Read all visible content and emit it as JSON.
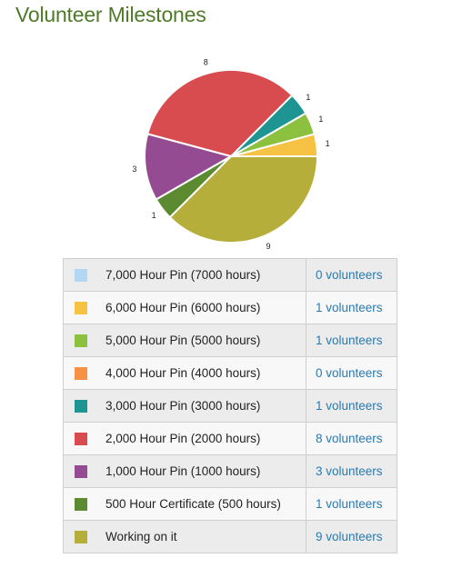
{
  "page": {
    "title": "Volunteer Milestones"
  },
  "chart_data": {
    "type": "pie",
    "slices": [
      {
        "label": "7,000 Hour Pin (7000 hours)",
        "value": 0,
        "color": "#b3d7f3"
      },
      {
        "label": "6,000 Hour Pin (6000 hours)",
        "value": 1,
        "color": "#f5c244"
      },
      {
        "label": "5,000 Hour Pin (5000 hours)",
        "value": 1,
        "color": "#8cc03f"
      },
      {
        "label": "4,000 Hour Pin (4000 hours)",
        "value": 0,
        "color": "#f79146"
      },
      {
        "label": "3,000 Hour Pin (3000 hours)",
        "value": 1,
        "color": "#1e9592"
      },
      {
        "label": "2,000 Hour Pin (2000 hours)",
        "value": 8,
        "color": "#d84b4e"
      },
      {
        "label": "1,000 Hour Pin (1000 hours)",
        "value": 3,
        "color": "#954b92"
      },
      {
        "label": "500 Hour Certificate (500 hours)",
        "value": 1,
        "color": "#5b8a31"
      },
      {
        "label": "Working on it",
        "value": 9,
        "color": "#b5ae3a"
      }
    ]
  },
  "legend": {
    "rows": [
      {
        "label": "7,000 Hour Pin (7000 hours)",
        "count": "0 volunteers",
        "color": "#b3d7f3"
      },
      {
        "label": "6,000 Hour Pin (6000 hours)",
        "count": "1 volunteers",
        "color": "#f5c244"
      },
      {
        "label": "5,000 Hour Pin (5000 hours)",
        "count": "1 volunteers",
        "color": "#8cc03f"
      },
      {
        "label": "4,000 Hour Pin (4000 hours)",
        "count": "0 volunteers",
        "color": "#f79146"
      },
      {
        "label": "3,000 Hour Pin (3000 hours)",
        "count": "1 volunteers",
        "color": "#1e9592"
      },
      {
        "label": "2,000 Hour Pin (2000 hours)",
        "count": "8 volunteers",
        "color": "#d84b4e"
      },
      {
        "label": "1,000 Hour Pin (1000 hours)",
        "count": "3 volunteers",
        "color": "#954b92"
      },
      {
        "label": "500 Hour Certificate (500 hours)",
        "count": "1 volunteers",
        "color": "#5b8a31"
      },
      {
        "label": "Working on it",
        "count": "9 volunteers",
        "color": "#b5ae3a"
      }
    ]
  }
}
